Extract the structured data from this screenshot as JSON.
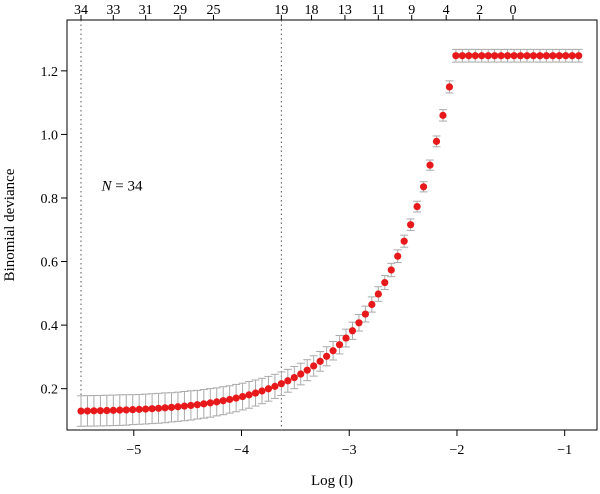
{
  "chart_data": {
    "type": "scatter",
    "xlabel": "Log (l)",
    "ylabel": "Binomial deviance",
    "xlim": [
      -5.62,
      -0.7
    ],
    "ylim": [
      0.07,
      1.36
    ],
    "x_ticks": [
      -5,
      -4,
      -3,
      -2,
      -1
    ],
    "x_tick_labels": [
      "−5",
      "−4",
      "−3",
      "−2",
      "−1"
    ],
    "y_ticks": [
      0.2,
      0.4,
      0.6,
      0.8,
      1.0,
      1.2
    ],
    "y_tick_labels": [
      "0.2",
      "0.4",
      "0.6",
      "0.8",
      "1.0",
      "1.2"
    ],
    "top_axis": {
      "positions": [
        -5.49,
        -5.19,
        -4.89,
        -4.57,
        -4.26,
        -3.63,
        -3.35,
        -3.04,
        -2.73,
        -2.42,
        -2.1,
        -1.79,
        -1.48
      ],
      "labels": [
        "34",
        "33",
        "31",
        "29",
        "25",
        "19",
        "18",
        "13",
        "11",
        "9",
        "4",
        "2",
        "0"
      ]
    },
    "vlines": [
      -5.49,
      -3.63
    ],
    "annotation": {
      "text": "N = 34",
      "x": -5.3,
      "y": 0.84
    },
    "grid": false,
    "point_color": "#e8191a",
    "errorbar_color": "#aaaaaa",
    "series": [
      {
        "x": [
          -5.49,
          -5.43,
          -5.37,
          -5.31,
          -5.25,
          -5.19,
          -5.13,
          -5.07,
          -5.01,
          -4.95,
          -4.89,
          -4.83,
          -4.77,
          -4.71,
          -4.65,
          -4.59,
          -4.53,
          -4.47,
          -4.41,
          -4.35,
          -4.29,
          -4.23,
          -4.17,
          -4.11,
          -4.05,
          -3.99,
          -3.93,
          -3.87,
          -3.81,
          -3.75,
          -3.69,
          -3.63,
          -3.57,
          -3.51,
          -3.45,
          -3.39,
          -3.33,
          -3.27,
          -3.21,
          -3.15,
          -3.09,
          -3.03,
          -2.97,
          -2.91,
          -2.85,
          -2.79,
          -2.73,
          -2.67,
          -2.61,
          -2.55,
          -2.49,
          -2.43,
          -2.37,
          -2.31,
          -2.25,
          -2.19,
          -2.13,
          -2.07,
          -2.01,
          -1.95,
          -1.89,
          -1.83,
          -1.77,
          -1.71,
          -1.65,
          -1.59,
          -1.53,
          -1.47,
          -1.41,
          -1.35,
          -1.29,
          -1.23,
          -1.17,
          -1.11,
          -1.05,
          -0.99,
          -0.93,
          -0.87
        ],
        "y": [
          0.1296,
          0.13,
          0.1303,
          0.1308,
          0.1313,
          0.1318,
          0.1325,
          0.1332,
          0.134,
          0.1349,
          0.1359,
          0.1371,
          0.1383,
          0.1398,
          0.1413,
          0.1431,
          0.1451,
          0.1473,
          0.1497,
          0.1523,
          0.1553,
          0.1585,
          0.1621,
          0.1661,
          0.1704,
          0.1752,
          0.1805,
          0.1863,
          0.1927,
          0.1997,
          0.2073,
          0.2157,
          0.2249,
          0.235,
          0.2461,
          0.2582,
          0.2715,
          0.286,
          0.3019,
          0.3193,
          0.3384,
          0.3593,
          0.3822,
          0.4073,
          0.4348,
          0.4649,
          0.4978,
          0.5339,
          0.5734,
          0.6167,
          0.6641,
          0.716,
          0.7729,
          0.8352,
          0.9034,
          0.9781,
          1.0599,
          1.1495,
          1.2476,
          1.2476,
          1.2476,
          1.2476,
          1.2476,
          1.2476,
          1.2476,
          1.2476,
          1.2476,
          1.2476,
          1.2476,
          1.2476,
          1.2476,
          1.2476,
          1.2476,
          1.2476,
          1.2476,
          1.2476,
          1.2476,
          1.2476
        ],
        "err": [
          0.048,
          0.048,
          0.048,
          0.048,
          0.048,
          0.048,
          0.048,
          0.048,
          0.047,
          0.047,
          0.047,
          0.047,
          0.047,
          0.047,
          0.046,
          0.046,
          0.046,
          0.046,
          0.045,
          0.045,
          0.045,
          0.044,
          0.044,
          0.043,
          0.043,
          0.042,
          0.042,
          0.041,
          0.04,
          0.039,
          0.038,
          0.037,
          0.036,
          0.035,
          0.034,
          0.033,
          0.032,
          0.031,
          0.03,
          0.029,
          0.029,
          0.028,
          0.027,
          0.026,
          0.025,
          0.024,
          0.023,
          0.022,
          0.021,
          0.02,
          0.019,
          0.018,
          0.017,
          0.016,
          0.016,
          0.017,
          0.018,
          0.019,
          0.02,
          0.02,
          0.02,
          0.02,
          0.02,
          0.02,
          0.02,
          0.02,
          0.02,
          0.02,
          0.02,
          0.02,
          0.02,
          0.02,
          0.02,
          0.02,
          0.02,
          0.02,
          0.02,
          0.02
        ]
      }
    ]
  }
}
